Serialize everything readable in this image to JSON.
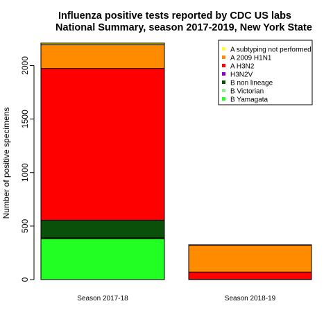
{
  "chart_data": {
    "type": "bar",
    "stacked": true,
    "title": "Influenza positive tests reported by CDC US labs",
    "subtitle": "National Summary, season 2017-2019, New York State",
    "xlabel": "",
    "ylabel": "Number of positive specimens",
    "ylim": [
      0,
      2230
    ],
    "yticks": [
      0,
      500,
      1000,
      1500,
      2000
    ],
    "categories": [
      "Season 2017-18",
      "Season 2018-19"
    ],
    "series": [
      {
        "name": "B Yamagata",
        "color": "#22ff22",
        "values": [
          383,
          0
        ]
      },
      {
        "name": "B Victorian",
        "color": "#90ee90",
        "values": [
          7,
          0
        ]
      },
      {
        "name": "B non lineage",
        "color": "#0a4f0a",
        "values": [
          165,
          2
        ]
      },
      {
        "name": "H3N2V",
        "color": "#8b00cc",
        "values": [
          0,
          0
        ]
      },
      {
        "name": "A H3N2",
        "color": "#ff0000",
        "values": [
          1418,
          68
        ]
      },
      {
        "name": "A 2009 H1N1",
        "color": "#ff8c00",
        "values": [
          221,
          252
        ]
      },
      {
        "name": "A subtyping not performed",
        "color": "#ffff33",
        "values": [
          16,
          3
        ]
      }
    ],
    "legend_order": [
      "A subtyping not performed",
      "A 2009 H1N1",
      "A H3N2",
      "H3N2V",
      "B non lineage",
      "B Victorian",
      "B Yamagata"
    ],
    "legend_position": "top-right",
    "grid": false
  }
}
